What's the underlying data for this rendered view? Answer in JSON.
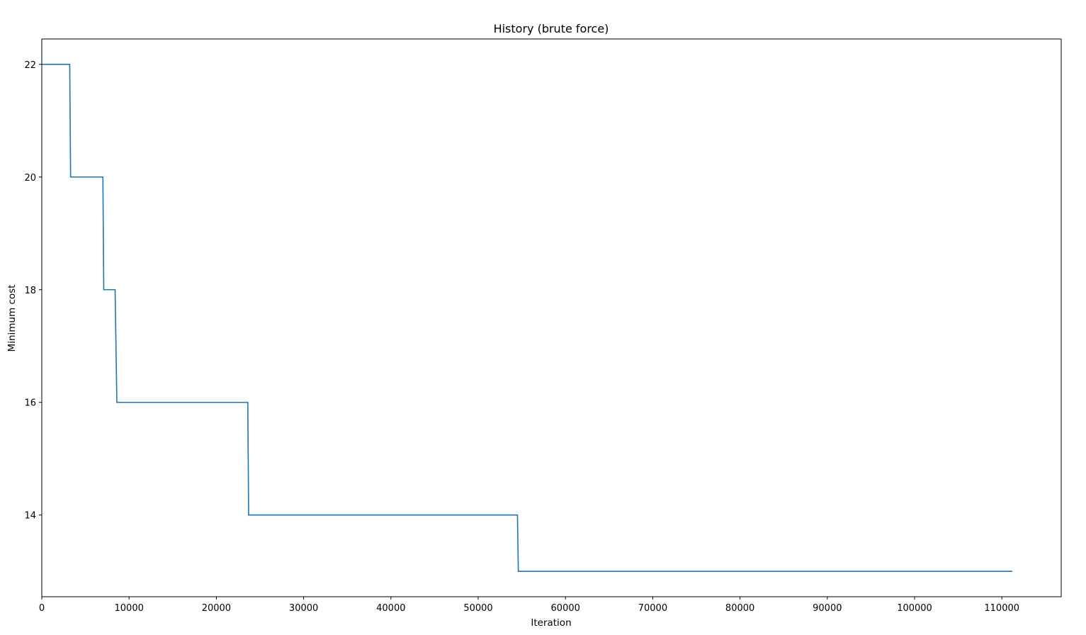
{
  "chart_data": {
    "type": "line",
    "title": "History (brute force)",
    "xlabel": "Iteration",
    "ylabel": "Minimum cost",
    "xlim": [
      0,
      116800
    ],
    "ylim": [
      12.55,
      22.45
    ],
    "xticks": [
      0,
      10000,
      20000,
      30000,
      40000,
      50000,
      60000,
      70000,
      80000,
      90000,
      100000,
      110000
    ],
    "xtick_labels": [
      "0",
      "10000",
      "20000",
      "30000",
      "40000",
      "50000",
      "60000",
      "70000",
      "80000",
      "90000",
      "100000",
      "110000"
    ],
    "yticks": [
      14,
      16,
      18,
      20,
      22
    ],
    "ytick_labels": [
      "14",
      "16",
      "18",
      "20",
      "22"
    ],
    "grid": false,
    "line_color": "#1f77b4",
    "series": [
      {
        "x": [
          0,
          3200,
          3300,
          7000,
          7100,
          8400,
          8600,
          23600,
          23700,
          54500,
          54600,
          111200
        ],
        "y": [
          22,
          22,
          20,
          20,
          18,
          18,
          16,
          16,
          14,
          14,
          13,
          13
        ]
      }
    ]
  }
}
